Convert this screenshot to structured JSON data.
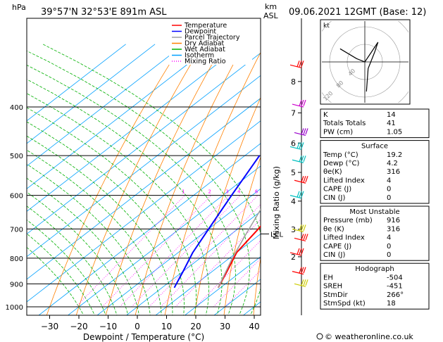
{
  "header": {
    "unit_left": "hPa",
    "location": "39°57'N  32°53'E  891m  ASL",
    "unit_right_1": "km",
    "unit_right_2": "ASL",
    "datetime": "09.06.2021  12GMT  (Base: 12)"
  },
  "legend": {
    "items": [
      {
        "label": "Temperature",
        "color": "#ff0000",
        "style": "solid"
      },
      {
        "label": "Dewpoint",
        "color": "#0000ff",
        "style": "solid"
      },
      {
        "label": "Parcel Trajectory",
        "color": "#a0a0a0",
        "style": "solid"
      },
      {
        "label": "Dry Adiabat",
        "color": "#ff8000",
        "style": "solid"
      },
      {
        "label": "Wet Adiabat",
        "color": "#00b000",
        "style": "solid"
      },
      {
        "label": "Isotherm",
        "color": "#00a0ff",
        "style": "solid"
      },
      {
        "label": "Mixing Ratio",
        "color": "#ff00ff",
        "style": "dotted"
      }
    ]
  },
  "chart_data": {
    "type": "line",
    "xlabel": "Dewpoint / Temperature (°C)",
    "ylabel": "hPa",
    "x_ticks": [
      -30,
      -20,
      -10,
      0,
      10,
      20,
      30,
      40
    ],
    "xlim": [
      -38,
      42
    ],
    "pressure_ticks": [
      400,
      500,
      600,
      700,
      800,
      900,
      1000
    ],
    "ylim": [
      300,
      1050
    ],
    "height_ticks_km": [
      {
        "label": "8",
        "p": 356
      },
      {
        "label": "7",
        "p": 411
      },
      {
        "label": "6",
        "p": 472
      },
      {
        "label": "5",
        "p": 540
      },
      {
        "label": "4",
        "p": 616
      },
      {
        "label": "3",
        "p": 701
      },
      {
        "label": "2",
        "p": 795
      }
    ],
    "lcl_label": "LCL",
    "lcl_p": 716,
    "mixing_ratio_label": "Mixing Ratio (g/kg)",
    "mixing_ratios": [
      "1",
      "2",
      "3",
      "4",
      "6",
      "8",
      "10",
      "15",
      "20",
      "25"
    ],
    "series": [
      {
        "name": "Temperature",
        "color": "#ff0000",
        "points": [
          [
            19.2,
            916
          ],
          [
            15,
            850
          ],
          [
            10,
            780
          ],
          [
            7,
            700
          ],
          [
            2,
            600
          ],
          [
            -4,
            500
          ]
        ]
      },
      {
        "name": "Dewpoint",
        "color": "#0000ff",
        "points": [
          [
            4.2,
            916
          ],
          [
            0,
            850
          ],
          [
            -5,
            780
          ],
          [
            -10,
            700
          ],
          [
            -17,
            600
          ],
          [
            -25,
            500
          ]
        ]
      },
      {
        "name": "Parcel Trajectory",
        "color": "#a0a0a0",
        "points": [
          [
            19.2,
            916
          ],
          [
            11,
            800
          ],
          [
            5,
            716
          ],
          [
            0,
            650
          ],
          [
            -6,
            580
          ],
          [
            -14,
            500
          ],
          [
            -24,
            420
          ],
          [
            -34,
            350
          ],
          [
            -40,
            320
          ]
        ]
      }
    ]
  },
  "hodograph": {
    "unit": "kt",
    "ring_labels": [
      "40",
      "80",
      "120"
    ],
    "points": [
      [
        -15,
        8
      ],
      [
        -5,
        2
      ],
      [
        0,
        0
      ],
      [
        4,
        6
      ],
      [
        8,
        12
      ],
      [
        6,
        6
      ],
      [
        2,
        -4
      ],
      [
        1,
        -18
      ]
    ]
  },
  "stats": {
    "general": [
      {
        "label": "K",
        "value": "14"
      },
      {
        "label": "Totals Totals",
        "value": "41"
      },
      {
        "label": "PW (cm)",
        "value": "1.05"
      }
    ],
    "surface": {
      "title": "Surface",
      "rows": [
        {
          "label": "Temp (°C)",
          "value": "19.2"
        },
        {
          "label": "Dewp (°C)",
          "value": "4.2"
        },
        {
          "label": "θe(K)",
          "value": "316"
        },
        {
          "label": "Lifted Index",
          "value": "4"
        },
        {
          "label": "CAPE (J)",
          "value": "0"
        },
        {
          "label": "CIN (J)",
          "value": "0"
        }
      ]
    },
    "most_unstable": {
      "title": "Most Unstable",
      "rows": [
        {
          "label": "Pressure (mb)",
          "value": "916"
        },
        {
          "label": "θe (K)",
          "value": "316"
        },
        {
          "label": "Lifted Index",
          "value": "4"
        },
        {
          "label": "CAPE (J)",
          "value": "0"
        },
        {
          "label": "CIN (J)",
          "value": "0"
        }
      ]
    },
    "hodograph_table": {
      "title": "Hodograph",
      "rows": [
        {
          "label": "EH",
          "value": "-504"
        },
        {
          "label": "SREH",
          "value": "-451"
        },
        {
          "label": "StmDir",
          "value": "266°"
        },
        {
          "label": "StmSpd (kt)",
          "value": "18"
        }
      ]
    }
  },
  "wind_barbs": [
    {
      "p": 330,
      "color": "#ff0000"
    },
    {
      "p": 395,
      "color": "#cc00cc"
    },
    {
      "p": 450,
      "color": "#9900cc"
    },
    {
      "p": 480,
      "color": "#00c0c0"
    },
    {
      "p": 510,
      "color": "#00c0c0"
    },
    {
      "p": 560,
      "color": "#ff0000"
    },
    {
      "p": 600,
      "color": "#00c0c0"
    },
    {
      "p": 700,
      "color": "#cccc00"
    },
    {
      "p": 730,
      "color": "#ff0000"
    },
    {
      "p": 780,
      "color": "#ff0000"
    },
    {
      "p": 850,
      "color": "#ff0000"
    },
    {
      "p": 900,
      "color": "#cccc00"
    }
  ],
  "footer": {
    "credit": "© weatheronline.co.uk"
  }
}
